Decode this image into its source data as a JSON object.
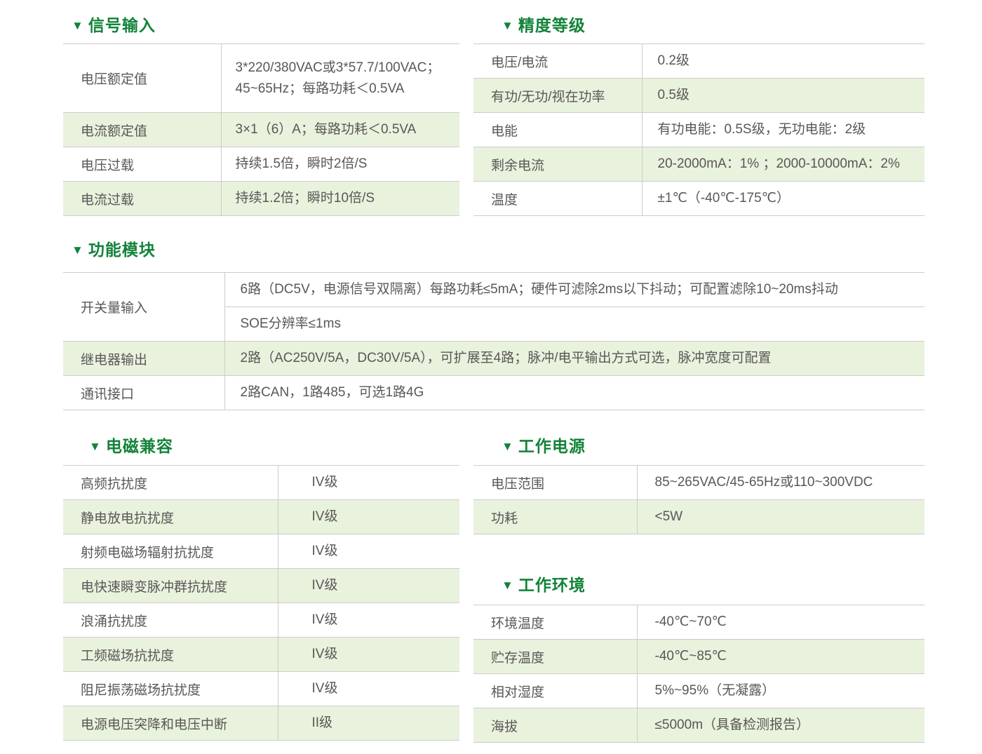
{
  "theme": {
    "title_green": "#128339",
    "row_green": "#e9f2dd",
    "border_gray": "#cccccc",
    "text_gray": "#595757",
    "marker_glyph": "▼"
  },
  "sections": {
    "signal_input": {
      "title": "信号输入",
      "rows": [
        {
          "label": "电压额定值",
          "value": "3*220/380VAC或3*57.7/100VAC；\n45~65Hz；每路功耗＜0.5VA"
        },
        {
          "label": "电流额定值",
          "value": "3×1（6）A；每路功耗＜0.5VA"
        },
        {
          "label": "电压过载",
          "value": "持续1.5倍，瞬时2倍/S"
        },
        {
          "label": "电流过载",
          "value": "持续1.2倍；瞬时10倍/S"
        }
      ]
    },
    "accuracy": {
      "title": "精度等级",
      "rows": [
        {
          "label": "电压/电流",
          "value": "0.2级"
        },
        {
          "label": "有功/无功/视在功率",
          "value": "0.5级"
        },
        {
          "label": "电能",
          "value": "有功电能：0.5S级，无功电能：2级"
        },
        {
          "label": "剩余电流",
          "value": "20-2000mA：1% ；2000-10000mA：2%"
        },
        {
          "label": "温度",
          "value": "±1℃（-40℃-175℃）"
        }
      ]
    },
    "function_module": {
      "title": "功能模块",
      "switch_input": {
        "label": "开关量输入",
        "values": [
          "6路（DC5V，电源信号双隔离）每路功耗≤5mA；硬件可滤除2ms以下抖动；可配置滤除10~20ms抖动",
          "SOE分辨率≤1ms"
        ]
      },
      "rows": [
        {
          "label": "继电器输出",
          "value": "2路（AC250V/5A，DC30V/5A），可扩展至4路；脉冲/电平输出方式可选，脉冲宽度可配置"
        },
        {
          "label": "通讯接口",
          "value": "2路CAN，1路485，可选1路4G"
        }
      ]
    },
    "emc": {
      "title": "电磁兼容",
      "rows": [
        {
          "label": "高频抗扰度",
          "value": "IV级"
        },
        {
          "label": "静电放电抗扰度",
          "value": "IV级"
        },
        {
          "label": "射频电磁场辐射抗扰度",
          "value": "IV级"
        },
        {
          "label": "电快速瞬变脉冲群抗扰度",
          "value": "IV级"
        },
        {
          "label": "浪涌抗扰度",
          "value": "IV级"
        },
        {
          "label": "工频磁场抗扰度",
          "value": "IV级"
        },
        {
          "label": "阻尼振荡磁场抗扰度",
          "value": "IV级"
        },
        {
          "label": "电源电压突降和电压中断",
          "value": "II级"
        }
      ]
    },
    "working_power": {
      "title": "工作电源",
      "rows": [
        {
          "label": "电压范围",
          "value": "85~265VAC/45-65Hz或110~300VDC"
        },
        {
          "label": "功耗",
          "value": "<5W"
        }
      ]
    },
    "working_env": {
      "title": "工作环境",
      "rows": [
        {
          "label": "环境温度",
          "value": "-40℃~70℃"
        },
        {
          "label": "贮存温度",
          "value": "-40℃~85℃"
        },
        {
          "label": "相对湿度",
          "value": "5%~95%（无凝露）"
        },
        {
          "label": "海拔",
          "value": "≤5000m（具备检测报告）"
        }
      ]
    }
  }
}
